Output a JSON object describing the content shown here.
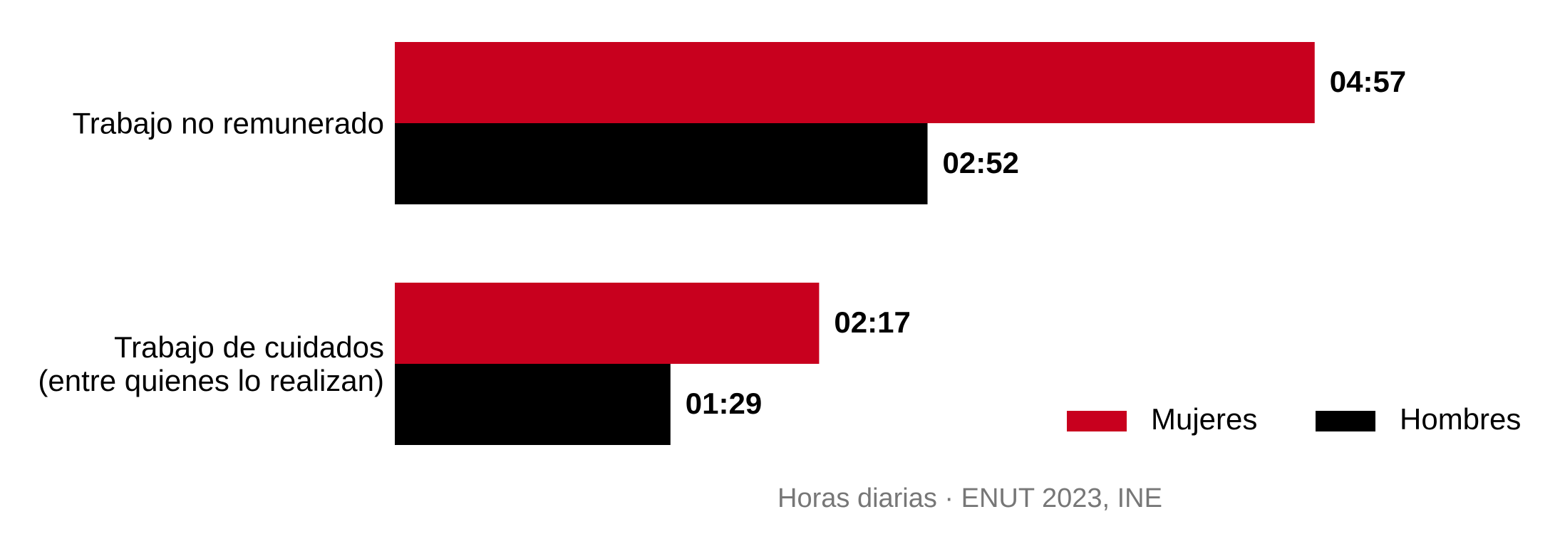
{
  "chart_data": {
    "type": "bar",
    "orientation": "horizontal",
    "caption": "Horas diarias · ENUT 2023, INE",
    "categories": [
      "Trabajo no remunerado",
      "Trabajo de cuidados\n(entre quienes lo realizan)"
    ],
    "series": [
      {
        "name": "Mujeres",
        "color": "#c8001e",
        "values": [
          297,
          137
        ],
        "value_labels": [
          "04:57",
          "02:17"
        ]
      },
      {
        "name": "Hombres",
        "color": "#000000",
        "values": [
          172,
          89
        ],
        "value_labels": [
          "02:52",
          "01:29"
        ]
      }
    ],
    "legend": "bottom-right",
    "grid": false
  }
}
